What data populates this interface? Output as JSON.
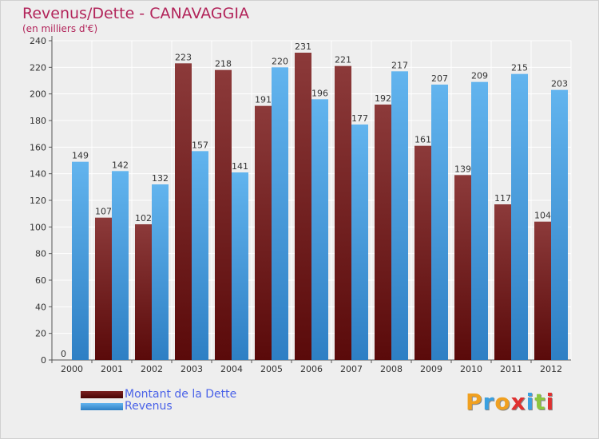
{
  "title": "Revenus/Dette - CANAVAGGIA",
  "subtitle": "(en milliers d'€)",
  "logo_text": "Proxiti",
  "colors": {
    "background": "#eeeeee",
    "title": "#b2245a",
    "legend_text": "#4a62e8",
    "dette_top": "#8c3a3a",
    "dette_bottom": "#5a0a0a",
    "revenus_top": "#62b4ee",
    "revenus_bottom": "#2e7fc4"
  },
  "chart_data": {
    "type": "bar",
    "categories": [
      "2000",
      "2001",
      "2002",
      "2003",
      "2004",
      "2005",
      "2006",
      "2007",
      "2008",
      "2009",
      "2010",
      "2011",
      "2012"
    ],
    "series": [
      {
        "name": "Montant de la Dette",
        "values": [
          0,
          107,
          102,
          223,
          218,
          191,
          231,
          221,
          192,
          161,
          139,
          117,
          104
        ]
      },
      {
        "name": "Revenus",
        "values": [
          149,
          142,
          132,
          157,
          141,
          220,
          196,
          177,
          217,
          207,
          209,
          215,
          203
        ]
      }
    ],
    "ylim": [
      0,
      240
    ],
    "yticks": [
      0,
      20,
      40,
      60,
      80,
      100,
      120,
      140,
      160,
      180,
      200,
      220,
      240
    ],
    "grid": true,
    "legend": "bottom-left"
  }
}
